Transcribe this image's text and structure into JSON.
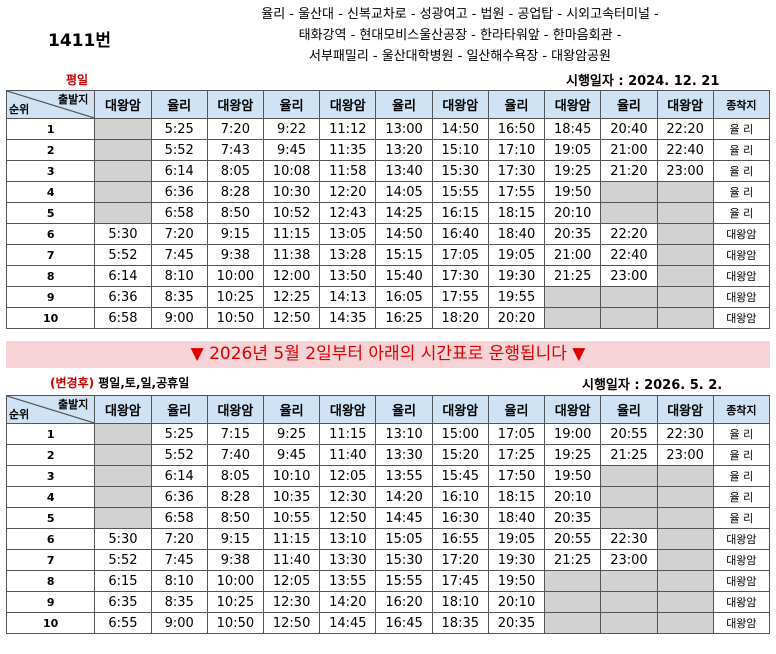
{
  "route_number": "1411번",
  "route_path": [
    "율리 - 울산대 - 신복교차로 - 성광여고 - 법원 - 공업탑 - 시외고속터미널 -",
    "태화강역 - 현대모비스울산공장 - 한라타워앞 - 한마음회관 -",
    "서부패밀리 - 울산대학병원 - 일산해수욕장 - 대왕암공원"
  ],
  "notice": "▼ 2026년 5월 2일부터 아래의 시간표로 운행됩니다 ▼",
  "columns": [
    "대왕암",
    "율리",
    "대왕암",
    "율리",
    "대왕암",
    "율리",
    "대왕암",
    "율리",
    "대왕암",
    "율리",
    "대왕암",
    "종착지"
  ],
  "corner": {
    "top": "출발지",
    "bottom": "순위"
  },
  "timetables": [
    {
      "day_label": "평일",
      "day_prefix": "",
      "effective_date": "시행일자 : 2024. 12. 21",
      "rows": [
        [
          "1",
          "",
          "5:25",
          "7:20",
          "9:22",
          "11:12",
          "13:00",
          "14:50",
          "16:50",
          "18:45",
          "20:40",
          "22:20",
          "율 리"
        ],
        [
          "2",
          "",
          "5:52",
          "7:43",
          "9:45",
          "11:35",
          "13:20",
          "15:10",
          "17:10",
          "19:05",
          "21:00",
          "22:40",
          "율 리"
        ],
        [
          "3",
          "",
          "6:14",
          "8:05",
          "10:08",
          "11:58",
          "13:40",
          "15:30",
          "17:30",
          "19:25",
          "21:20",
          "23:00",
          "율 리"
        ],
        [
          "4",
          "",
          "6:36",
          "8:28",
          "10:30",
          "12:20",
          "14:05",
          "15:55",
          "17:55",
          "19:50",
          "",
          "",
          "율 리"
        ],
        [
          "5",
          "",
          "6:58",
          "8:50",
          "10:52",
          "12:43",
          "14:25",
          "16:15",
          "18:15",
          "20:10",
          "",
          "",
          "율 리"
        ],
        [
          "6",
          "5:30",
          "7:20",
          "9:15",
          "11:15",
          "13:05",
          "14:50",
          "16:40",
          "18:40",
          "20:35",
          "22:20",
          "",
          "대왕암"
        ],
        [
          "7",
          "5:52",
          "7:45",
          "9:38",
          "11:38",
          "13:28",
          "15:15",
          "17:05",
          "19:05",
          "21:00",
          "22:40",
          "",
          "대왕암"
        ],
        [
          "8",
          "6:14",
          "8:10",
          "10:00",
          "12:00",
          "13:50",
          "15:40",
          "17:30",
          "19:30",
          "21:25",
          "23:00",
          "",
          "대왕암"
        ],
        [
          "9",
          "6:36",
          "8:35",
          "10:25",
          "12:25",
          "14:13",
          "16:05",
          "17:55",
          "19:55",
          "",
          "",
          "",
          "대왕암"
        ],
        [
          "10",
          "6:58",
          "9:00",
          "10:50",
          "12:50",
          "14:35",
          "16:25",
          "18:20",
          "20:20",
          "",
          "",
          "",
          "대왕암"
        ]
      ]
    },
    {
      "day_label": " 평일,토,일,공휴일",
      "day_prefix": "(변경후)",
      "effective_date": "시행일자 : 2026. 5. 2.",
      "rows": [
        [
          "1",
          "",
          "5:25",
          "7:15",
          "9:25",
          "11:15",
          "13:10",
          "15:00",
          "17:05",
          "19:00",
          "20:55",
          "22:30",
          "율 리"
        ],
        [
          "2",
          "",
          "5:52",
          "7:40",
          "9:45",
          "11:40",
          "13:30",
          "15:20",
          "17:25",
          "19:25",
          "21:25",
          "23:00",
          "율 리"
        ],
        [
          "3",
          "",
          "6:14",
          "8:05",
          "10:10",
          "12:05",
          "13:55",
          "15:45",
          "17:50",
          "19:50",
          "",
          "",
          "율 리"
        ],
        [
          "4",
          "",
          "6:36",
          "8:28",
          "10:35",
          "12:30",
          "14:20",
          "16:10",
          "18:15",
          "20:10",
          "",
          "",
          "율 리"
        ],
        [
          "5",
          "",
          "6:58",
          "8:50",
          "10:55",
          "12:50",
          "14:45",
          "16:30",
          "18:40",
          "20:35",
          "",
          "",
          "율 리"
        ],
        [
          "6",
          "5:30",
          "7:20",
          "9:15",
          "11:15",
          "13:10",
          "15:05",
          "16:55",
          "19:05",
          "20:55",
          "22:30",
          "",
          "대왕암"
        ],
        [
          "7",
          "5:52",
          "7:45",
          "9:38",
          "11:40",
          "13:30",
          "15:30",
          "17:20",
          "19:30",
          "21:25",
          "23:00",
          "",
          "대왕암"
        ],
        [
          "8",
          "6:15",
          "8:10",
          "10:00",
          "12:05",
          "13:55",
          "15:55",
          "17:45",
          "19:50",
          "",
          "",
          "",
          "대왕암"
        ],
        [
          "9",
          "6:35",
          "8:35",
          "10:25",
          "12:30",
          "14:20",
          "16:20",
          "18:10",
          "20:10",
          "",
          "",
          "",
          "대왕암"
        ],
        [
          "10",
          "6:55",
          "9:00",
          "10:50",
          "12:50",
          "14:45",
          "16:45",
          "18:35",
          "20:35",
          "",
          "",
          "",
          "대왕암"
        ]
      ]
    }
  ]
}
